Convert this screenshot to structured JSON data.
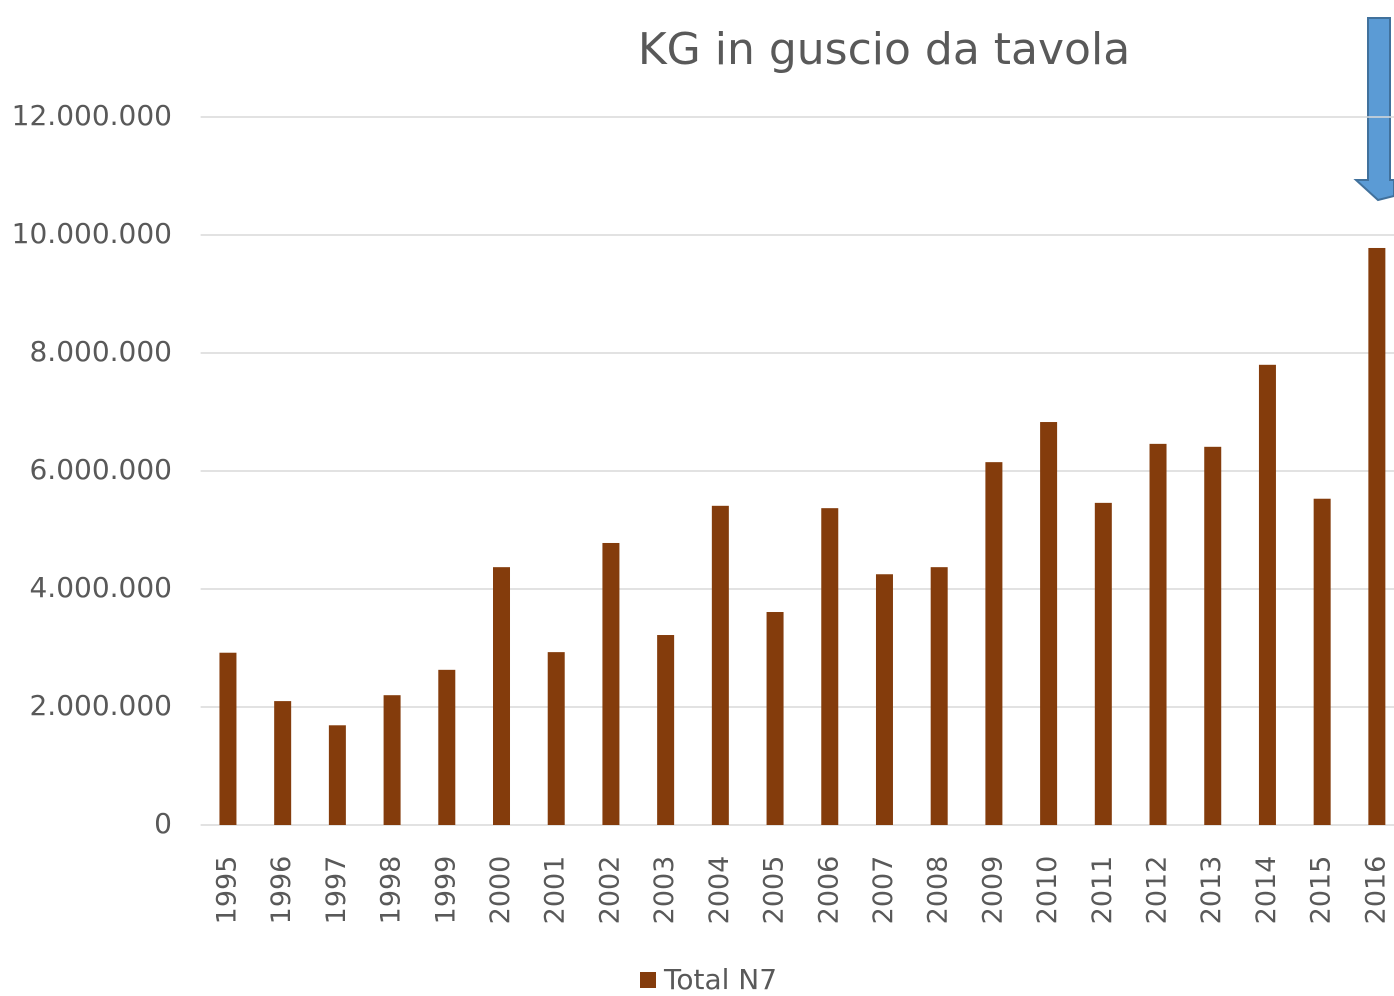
{
  "chart_data": {
    "type": "bar",
    "title": "KG in guscio da tavola",
    "categories": [
      "1995",
      "1996",
      "1997",
      "1998",
      "1999",
      "2000",
      "2001",
      "2002",
      "2003",
      "2004",
      "2005",
      "2006",
      "2007",
      "2008",
      "2009",
      "2010",
      "2011",
      "2012",
      "2013",
      "2014",
      "2015",
      "2016"
    ],
    "series": [
      {
        "name": "Total N7",
        "color": "#843c0c",
        "values": [
          2920000,
          2100000,
          1690000,
          2200000,
          2630000,
          4370000,
          2930000,
          4780000,
          3220000,
          5410000,
          3610000,
          5370000,
          4250000,
          4370000,
          6150000,
          6830000,
          5460000,
          6460000,
          6410000,
          7800000,
          5530000,
          9780000
        ]
      }
    ],
    "ylim": [
      0,
      12000000
    ],
    "yticks": [
      0,
      {
        "value": 2000000,
        "label": "2.000.000"
      },
      {
        "value": 4000000,
        "label": "4.000.000"
      },
      {
        "value": 6000000,
        "label": "6.000.000"
      },
      {
        "value": 8000000,
        "label": "8.000.000"
      },
      {
        "value": 10000000,
        "label": "10.000.000"
      },
      {
        "value": 12000000,
        "label": "12.000.000"
      }
    ],
    "grid": true,
    "legend": "bottom"
  }
}
